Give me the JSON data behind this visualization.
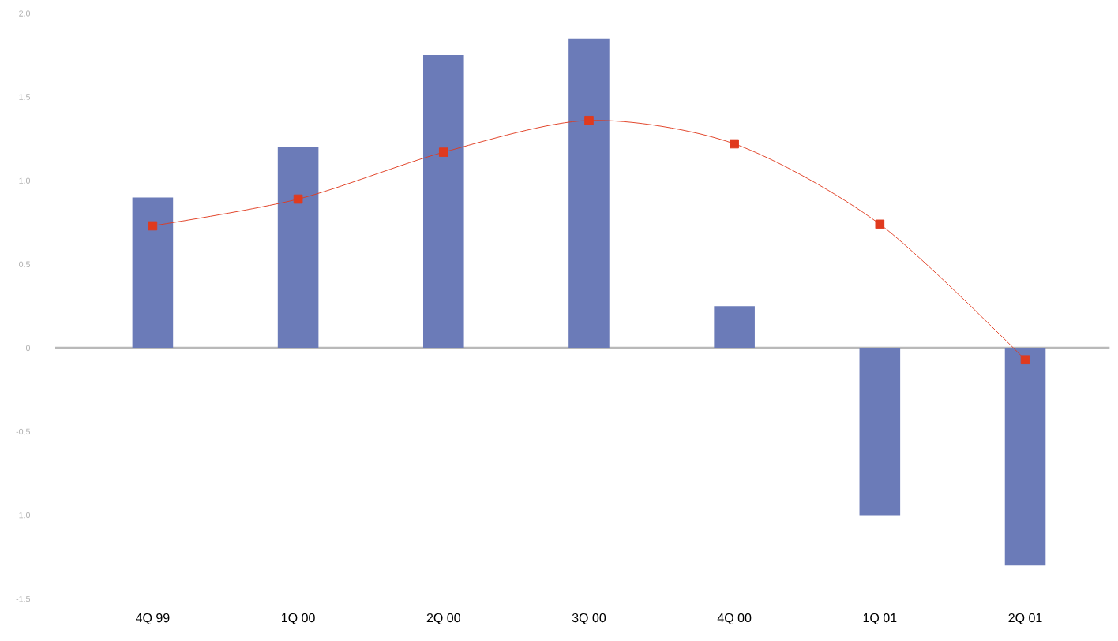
{
  "chart_data": {
    "type": "bar",
    "categories": [
      "4Q 99",
      "1Q 00",
      "2Q 00",
      "3Q 00",
      "4Q 00",
      "1Q 01",
      "2Q 01"
    ],
    "series": [
      {
        "color": "#6b7bb8",
        "values": [
          0.9,
          1.2,
          1.75,
          1.85,
          0.25,
          -1.0,
          -1.3
        ]
      },
      {
        "type": "line",
        "color": "#e03a1e",
        "values": [
          0.73,
          0.89,
          1.17,
          1.36,
          1.22,
          0.74,
          -0.07
        ]
      }
    ],
    "marker": "square",
    "ylim": [
      -1.5,
      2.0
    ],
    "yticks": [
      {
        "value": 2.0,
        "label": "2.0"
      },
      1.5,
      {
        "value": 1.0,
        "label": "1.0"
      },
      0.5,
      0,
      -0.5,
      {
        "value": -1.0,
        "label": "-1.0"
      },
      -1.5
    ]
  }
}
